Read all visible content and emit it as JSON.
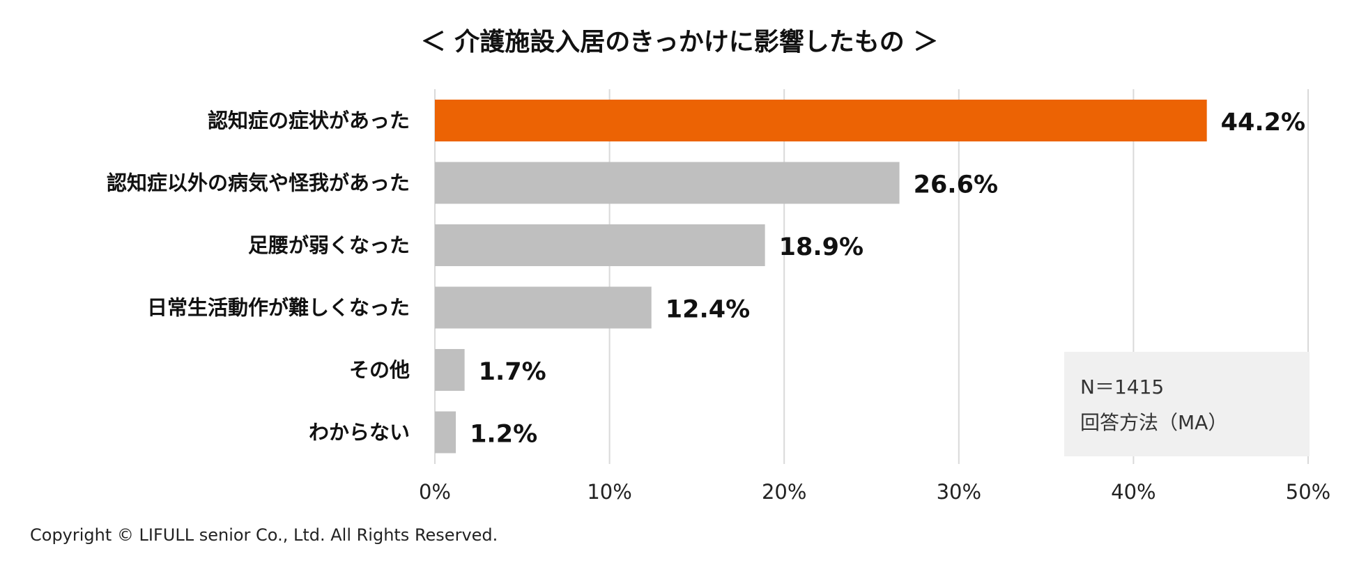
{
  "chart_data": {
    "type": "bar",
    "orientation": "horizontal",
    "title": "＜ 介護施設入居のきっかけに影響したもの ＞",
    "categories": [
      "認知症の症状があった",
      "認知症以外の病気や怪我があった",
      "足腰が弱くなった",
      "日常生活動作が難しくなった",
      "その他",
      "わからない"
    ],
    "values": [
      44.2,
      26.6,
      18.9,
      12.4,
      1.7,
      1.2
    ],
    "value_labels": [
      "44.2%",
      "26.6%",
      "18.9%",
      "12.4%",
      "1.7%",
      "1.2%"
    ],
    "highlight_index": 0,
    "colors": {
      "highlight": "#ec6304",
      "default": "#bfbfbf",
      "grid": "#d9d9d9",
      "note_background": "#f0f0f0"
    },
    "xlim": [
      0,
      50
    ],
    "xticks": [
      0,
      10,
      20,
      30,
      40,
      50
    ],
    "xtick_labels": [
      "0%",
      "10%",
      "20%",
      "30%",
      "40%",
      "50%"
    ],
    "grid": true,
    "xlabel": "",
    "ylabel": ""
  },
  "note": {
    "sample_size": "N＝1415",
    "method": "回答方法（MA）"
  },
  "copyright": "Copyright © LIFULL senior Co., Ltd. All Rights Reserved."
}
